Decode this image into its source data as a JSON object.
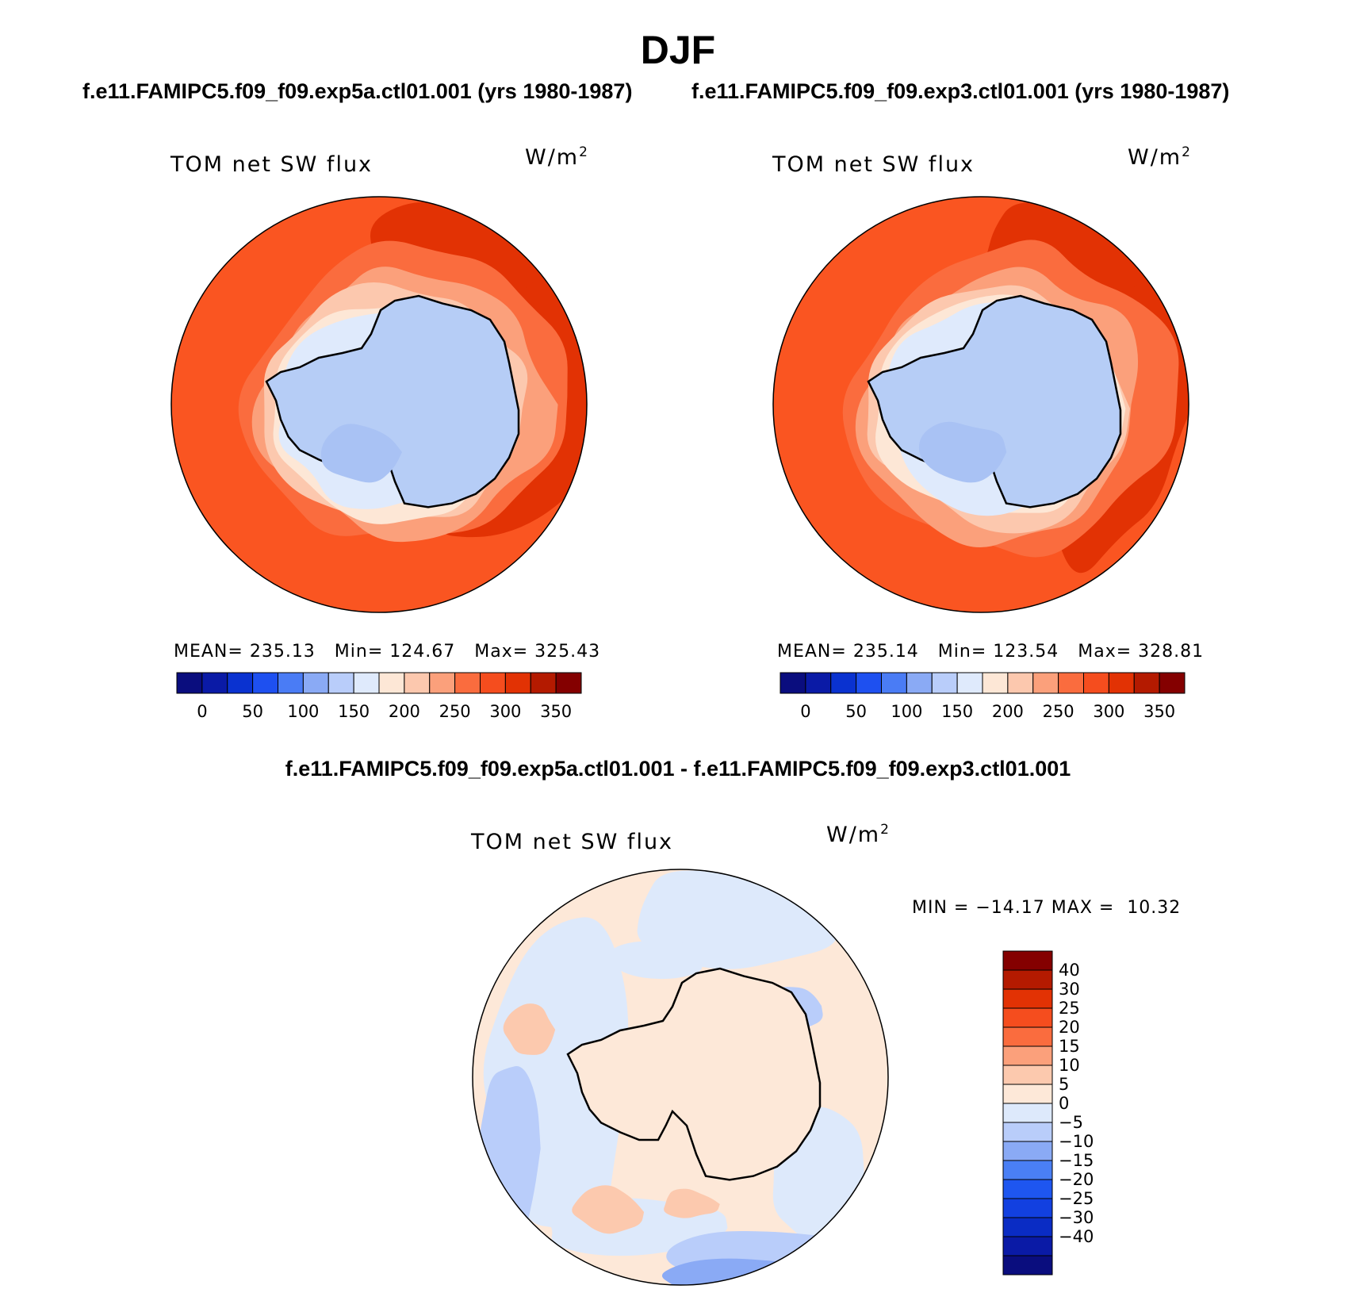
{
  "figure": {
    "season": "DJF",
    "case_a_title": "f.e11.FAMIPC5.f09_f09.exp5a.ctl01.001 (yrs 1980-1987)",
    "case_b_title": "f.e11.FAMIPC5.f09_f09.exp3.ctl01.001 (yrs 1980-1987)",
    "diff_title": "f.e11.FAMIPC5.f09_f09.exp5a.ctl01.001 - f.e11.FAMIPC5.f09_f09.exp3.ctl01.001"
  },
  "panels": {
    "a": {
      "variable": "TOM net SW flux",
      "units_base": "W/m",
      "units_exp": "2",
      "mean_label": "MEAN=",
      "mean": "235.13",
      "min_label": "Min=",
      "min": "124.67",
      "max_label": "Max=",
      "max": "325.43"
    },
    "b": {
      "variable": "TOM net SW flux",
      "units_base": "W/m",
      "units_exp": "2",
      "mean_label": "MEAN=",
      "mean": "235.14",
      "min_label": "Min=",
      "min": "123.54",
      "max_label": "Max=",
      "max": "328.81"
    },
    "diff": {
      "variable": "TOM net SW flux",
      "units_base": "W/m",
      "units_exp": "2",
      "min_label": "MIN =",
      "min": "−14.17",
      "max_label": "MAX =",
      "max": "10.32"
    }
  },
  "colors": {
    "abs_palette": [
      "#0a0d7e",
      "#0a1aa6",
      "#0a32d0",
      "#1e50f0",
      "#4a7cf5",
      "#8aaaf5",
      "#b9cdfa",
      "#dfeafc",
      "#fde7d6",
      "#fcc8ae",
      "#fba07b",
      "#fa6c3e",
      "#f54d1e",
      "#e23204",
      "#b41a00",
      "#840000"
    ],
    "diff_palette": [
      "#0a0d7e",
      "#0a1aa6",
      "#0a2cc4",
      "#1240e0",
      "#1e56f0",
      "#4a7ff5",
      "#8aaaf5",
      "#b9cdfa",
      "#dde9fb",
      "#fde8d8",
      "#fcc9ae",
      "#fba07b",
      "#fa6c3e",
      "#f54d1e",
      "#e23204",
      "#b41a00",
      "#840000"
    ],
    "land_ice": "#b6cdf6",
    "ocean_base": "#fa5521",
    "diff_base": "#fde8d8"
  },
  "chart_data": [
    {
      "type": "heatmap",
      "title": "TOM net SW flux",
      "subtitle": "f.e11.FAMIPC5.f09_f09.exp5a.ctl01.001 (yrs 1980-1987)",
      "projection": "south polar stereographic",
      "units": "W/m2",
      "colorbar_ticks": [
        0,
        50,
        100,
        150,
        200,
        250,
        300,
        350
      ],
      "levels": [
        -25,
        0,
        25,
        50,
        75,
        100,
        125,
        150,
        175,
        200,
        225,
        250,
        275,
        300,
        325,
        350
      ],
      "stats": {
        "mean": 235.13,
        "min": 124.67,
        "max": 325.43
      }
    },
    {
      "type": "heatmap",
      "title": "TOM net SW flux",
      "subtitle": "f.e11.FAMIPC5.f09_f09.exp3.ctl01.001 (yrs 1980-1987)",
      "projection": "south polar stereographic",
      "units": "W/m2",
      "colorbar_ticks": [
        0,
        50,
        100,
        150,
        200,
        250,
        300,
        350
      ],
      "levels": [
        -25,
        0,
        25,
        50,
        75,
        100,
        125,
        150,
        175,
        200,
        225,
        250,
        275,
        300,
        325,
        350
      ],
      "stats": {
        "mean": 235.14,
        "min": 123.54,
        "max": 328.81
      }
    },
    {
      "type": "heatmap",
      "title": "TOM net SW flux",
      "subtitle": "f.e11.FAMIPC5.f09_f09.exp5a.ctl01.001 - f.e11.FAMIPC5.f09_f09.exp3.ctl01.001",
      "projection": "south polar stereographic",
      "units": "W/m2",
      "colorbar_ticks": [
        "40",
        "30",
        "25",
        "20",
        "15",
        "10",
        "5",
        "0",
        "−5",
        "−10",
        "−15",
        "−20",
        "−25",
        "−30",
        "−40"
      ],
      "levels": [
        -40,
        -30,
        -25,
        -20,
        -15,
        -10,
        -5,
        0,
        5,
        10,
        15,
        20,
        25,
        30,
        40
      ],
      "stats": {
        "min": -14.17,
        "max": 10.32
      }
    }
  ]
}
